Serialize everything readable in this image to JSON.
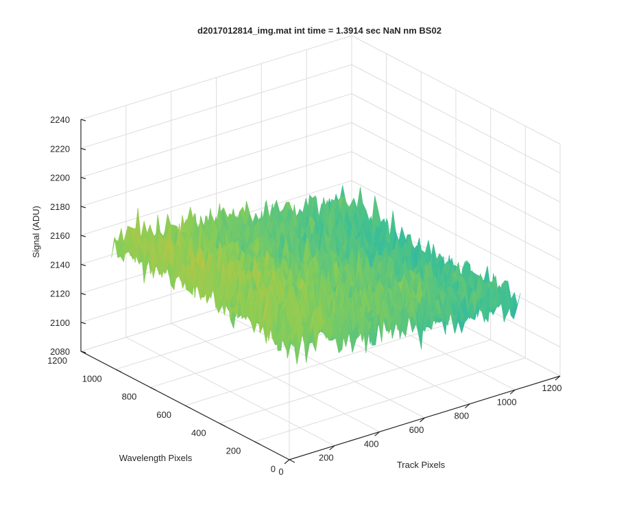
{
  "chart_data": {
    "type": "surface",
    "title": "d2017012814_img.mat int time = 1.3914 sec  NaN nm BS02",
    "xlabel": "Track Pixels",
    "ylabel": "Wavelength Pixels",
    "zlabel": "Signal (ADU)",
    "xlim": [
      0,
      1200
    ],
    "ylim": [
      0,
      1200
    ],
    "zlim": [
      2080,
      2240
    ],
    "xticks": [
      "0",
      "200",
      "400",
      "600",
      "800",
      "1000",
      "1200"
    ],
    "yticks": [
      "0",
      "200",
      "400",
      "600",
      "800",
      "1000",
      "1200"
    ],
    "zticks": [
      "2080",
      "2100",
      "2120",
      "2140",
      "2160",
      "2180",
      "2200",
      "2220",
      "2240"
    ],
    "grid": true,
    "colormap": [
      "#1f77c4",
      "#1fa7b8",
      "#3cbf96",
      "#8ccd55",
      "#d4c03a",
      "#f7bc3c"
    ],
    "surface": {
      "x_extent": [
        0,
        1024
      ],
      "y_extent": [
        0,
        1024
      ],
      "z_mean_profile": {
        "description_of_axis": "track pixels",
        "track_pixels": [
          0,
          200,
          400,
          600,
          800,
          1024
        ],
        "signal_mean_at_wavelength_1024": [
          2172,
          2166,
          2160,
          2155,
          2150,
          2145
        ],
        "signal_mean_at_wavelength_0": [
          2160,
          2155,
          2150,
          2145,
          2140,
          2135
        ]
      },
      "z_min": 2092,
      "z_max": 2212
    }
  }
}
